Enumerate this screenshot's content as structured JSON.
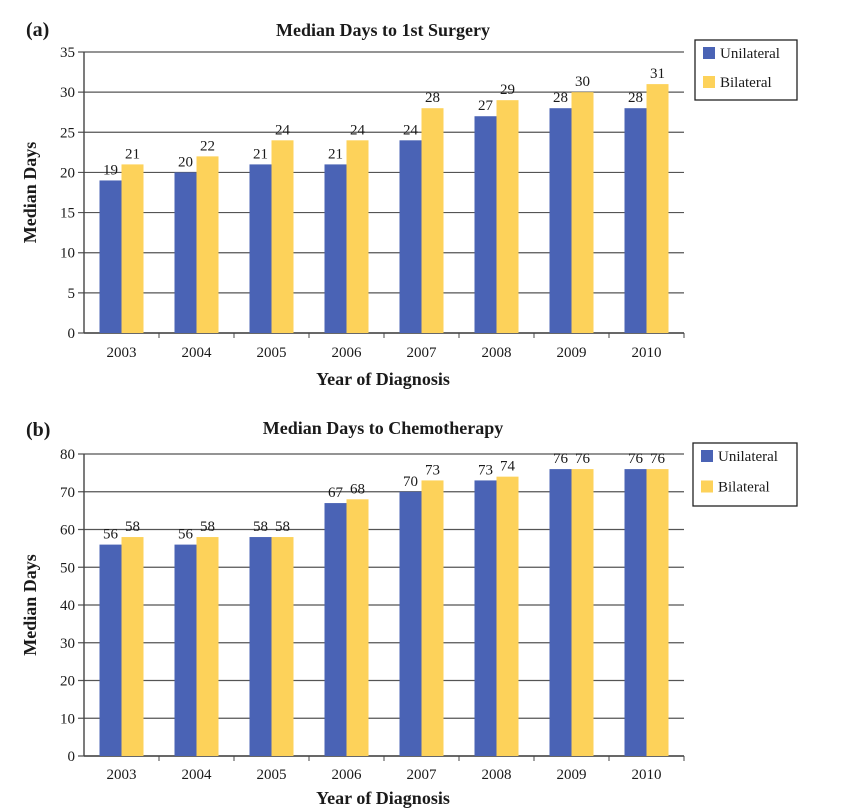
{
  "chart_data": [
    {
      "panel": "(a)",
      "type": "bar",
      "title": "Median Days to 1st Surgery",
      "xlabel": "Year of Diagnosis",
      "ylabel": "Median Days",
      "ylim": [
        0,
        35
      ],
      "yticks": [
        0,
        5,
        10,
        15,
        20,
        25,
        30,
        35
      ],
      "grid": true,
      "legend": "right",
      "categories": [
        "2003",
        "2004",
        "2005",
        "2006",
        "2007",
        "2008",
        "2009",
        "2010"
      ],
      "series": [
        {
          "name": "Unilateral",
          "color": "#4a63b5",
          "values": [
            19,
            20,
            21,
            21,
            24,
            27,
            28,
            28
          ]
        },
        {
          "name": "Bilateral",
          "color": "#fdd25a",
          "values": [
            21,
            22,
            24,
            24,
            28,
            29,
            30,
            31
          ]
        }
      ]
    },
    {
      "panel": "(b)",
      "type": "bar",
      "title": "Median Days to Chemotherapy",
      "xlabel": "Year of Diagnosis",
      "ylabel": "Median Days",
      "ylim": [
        0,
        80
      ],
      "yticks": [
        0,
        10,
        20,
        30,
        40,
        50,
        60,
        70,
        80
      ],
      "grid": true,
      "legend": "right",
      "categories": [
        "2003",
        "2004",
        "2005",
        "2006",
        "2007",
        "2008",
        "2009",
        "2010"
      ],
      "series": [
        {
          "name": "Unilateral",
          "color": "#4a63b5",
          "values": [
            56,
            56,
            58,
            67,
            70,
            73,
            76,
            76
          ]
        },
        {
          "name": "Bilateral",
          "color": "#fdd25a",
          "values": [
            58,
            58,
            58,
            68,
            73,
            74,
            76,
            76
          ]
        }
      ]
    }
  ]
}
